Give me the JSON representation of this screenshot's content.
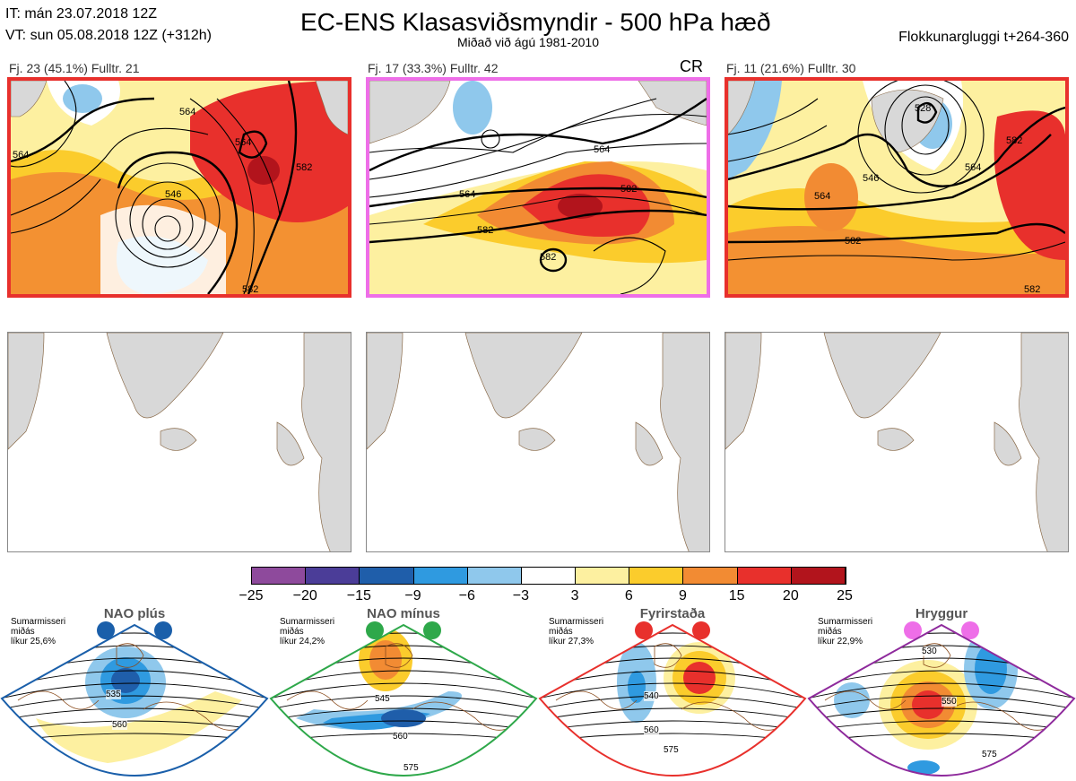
{
  "header": {
    "it_line": "IT: mán 23.07.2018 12Z",
    "vt_line": "VT: sun 05.08.2018 12Z  (+312h)",
    "title": "EC-ENS Klasasviðsmyndir - 500 hPa hæð",
    "subtitle": "Miðað við ágú 1981-2010",
    "window": "Flokkunargluggi t+264-360"
  },
  "clusters": [
    {
      "label": "Fj. 23 (45.1%)   Fulltr. 21",
      "tag": "",
      "border_color": "#e8302c",
      "contours": [
        "564",
        "546",
        "564",
        "582",
        "582",
        "564"
      ]
    },
    {
      "label": "Fj. 17 (33.3%)   Fulltr. 42",
      "tag": "CR",
      "border_color": "#ee6ee8",
      "contours": [
        "564",
        "564",
        "582",
        "582",
        "582"
      ]
    },
    {
      "label": "Fj. 11 (21.6%)   Fulltr. 30",
      "tag": "",
      "border_color": "#e8302c",
      "contours": [
        "528",
        "546",
        "564",
        "564",
        "582",
        "582",
        "582"
      ]
    }
  ],
  "colorbar": {
    "colors": [
      "#8e4a9c",
      "#4b3d98",
      "#1f5eaa",
      "#2f9ae0",
      "#8fc8ec",
      "#ffffff",
      "#fdf0a0",
      "#fbcc2c",
      "#f28b33",
      "#e8302c",
      "#b2141c"
    ],
    "ticks": [
      "−25",
      "−20",
      "−15",
      "−9",
      "−6",
      "−3",
      "3",
      "6",
      "9",
      "15",
      "20",
      "25"
    ]
  },
  "regimes": [
    {
      "title": "NAO plús",
      "note": "Sumarmisseri\nmiðás\nlíkur 25,6%",
      "border_color": "#1a5faa",
      "dot_color": "#1a5faa",
      "labels": [
        "535",
        "560"
      ]
    },
    {
      "title": "NAO mínus",
      "note": "Sumarmisseri\nmiðás\nlíkur 24,2%",
      "border_color": "#2ea84a",
      "dot_color": "#2ea84a",
      "labels": [
        "545",
        "560",
        "575"
      ]
    },
    {
      "title": "Fyrirstaða",
      "note": "Sumarmisseri\nmiðás\nlíkur 27,3%",
      "border_color": "#e8302c",
      "dot_color": "#e8302c",
      "labels": [
        "540",
        "560",
        "575"
      ]
    },
    {
      "title": "Hryggur",
      "note": "Sumarmisseri\nmiðás\nlíkur 22,9%",
      "border_color": "#8e2a9c",
      "dot_color": "#ee6ee8",
      "labels": [
        "530",
        "550",
        "575"
      ]
    }
  ]
}
